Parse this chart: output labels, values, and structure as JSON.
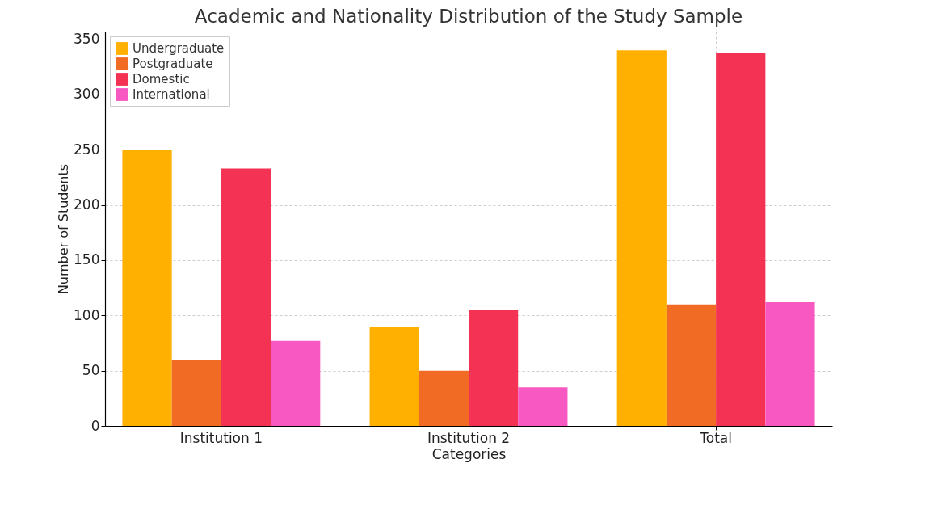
{
  "chart_data": {
    "type": "bar",
    "title": "Academic and Nationality Distribution of the Study Sample",
    "xlabel": "Categories",
    "ylabel": "Number of Students",
    "categories": [
      "Institution 1",
      "Institution 2",
      "Total"
    ],
    "series": [
      {
        "name": "Undergraduate",
        "color": "#ffb000",
        "values": [
          250,
          90,
          340
        ]
      },
      {
        "name": "Postgraduate",
        "color": "#f26b25",
        "values": [
          60,
          50,
          110
        ]
      },
      {
        "name": "Domestic",
        "color": "#f43354",
        "values": [
          233,
          105,
          338
        ]
      },
      {
        "name": "International",
        "color": "#f858c2",
        "values": [
          77,
          35,
          112
        ]
      }
    ],
    "ylim": [
      0,
      357
    ],
    "yticks": [
      0,
      50,
      100,
      150,
      200,
      250,
      300,
      350
    ],
    "grid": true,
    "legend": "top left"
  }
}
